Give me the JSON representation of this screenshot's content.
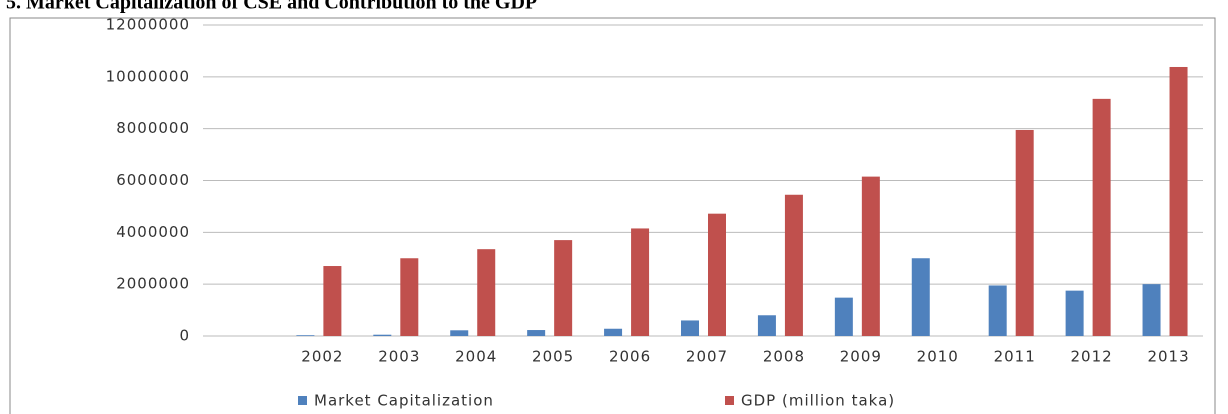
{
  "chart_data": {
    "type": "bar",
    "title": "5. Market Capitalization of CSE and Contribution to the GDP",
    "categories": [
      null,
      "2002",
      "2003",
      "2004",
      "2005",
      "2006",
      "2007",
      "2008",
      "2009",
      "2010",
      "2011",
      "2012",
      "2013"
    ],
    "series": [
      {
        "name": "Market Capitalization",
        "color": "#4f81bd",
        "values": [
          null,
          30000,
          50000,
          220000,
          230000,
          280000,
          600000,
          800000,
          1480000,
          3000000,
          1950000,
          1750000,
          2000000
        ]
      },
      {
        "name": "GDP (million taka)",
        "color": "#c0504d",
        "values": [
          null,
          2700000,
          3000000,
          3350000,
          3700000,
          4150000,
          4720000,
          5450000,
          6150000,
          null,
          7950000,
          9150000,
          10380000
        ]
      }
    ],
    "ylim": [
      0,
      12000000
    ],
    "yticks": [
      0,
      2000000,
      4000000,
      6000000,
      8000000,
      10000000,
      12000000
    ],
    "grid": true,
    "legend": "bottom"
  }
}
